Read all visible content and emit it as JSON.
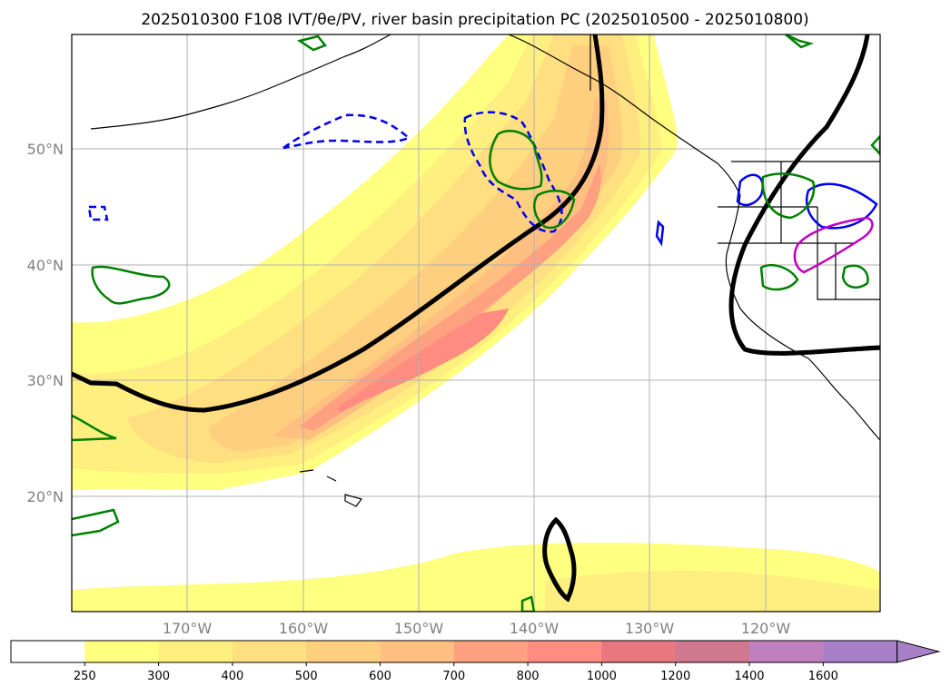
{
  "title": "2025010300 F108 IVT/θe/PV, river basin precipitation PC (2025010500 - 2025010800)",
  "map": {
    "lat_labels": [
      "50°N",
      "40°N",
      "30°N",
      "20°N"
    ],
    "lon_labels": [
      "170°W",
      "160°W",
      "150°W",
      "140°W",
      "130°W",
      "120°W"
    ]
  },
  "colorbar": {
    "labels": [
      "250",
      "300",
      "400",
      "500",
      "600",
      "700",
      "800",
      "1000",
      "1200",
      "1400",
      "1600"
    ],
    "colors": [
      "#ffffff",
      "#ffff80",
      "#ffef80",
      "#ffdf80",
      "#ffcf80",
      "#ffbf80",
      "#ffa080",
      "#ff8c80",
      "#e87880",
      "#d07890",
      "#c080c0",
      "#a880c8"
    ]
  },
  "colors": {
    "theta_contour": "#000000",
    "negative_pc": "#0000ee",
    "positive_pc": "#008000",
    "magenta_pc": "#c000c0",
    "grid": "#b0b0b0"
  }
}
